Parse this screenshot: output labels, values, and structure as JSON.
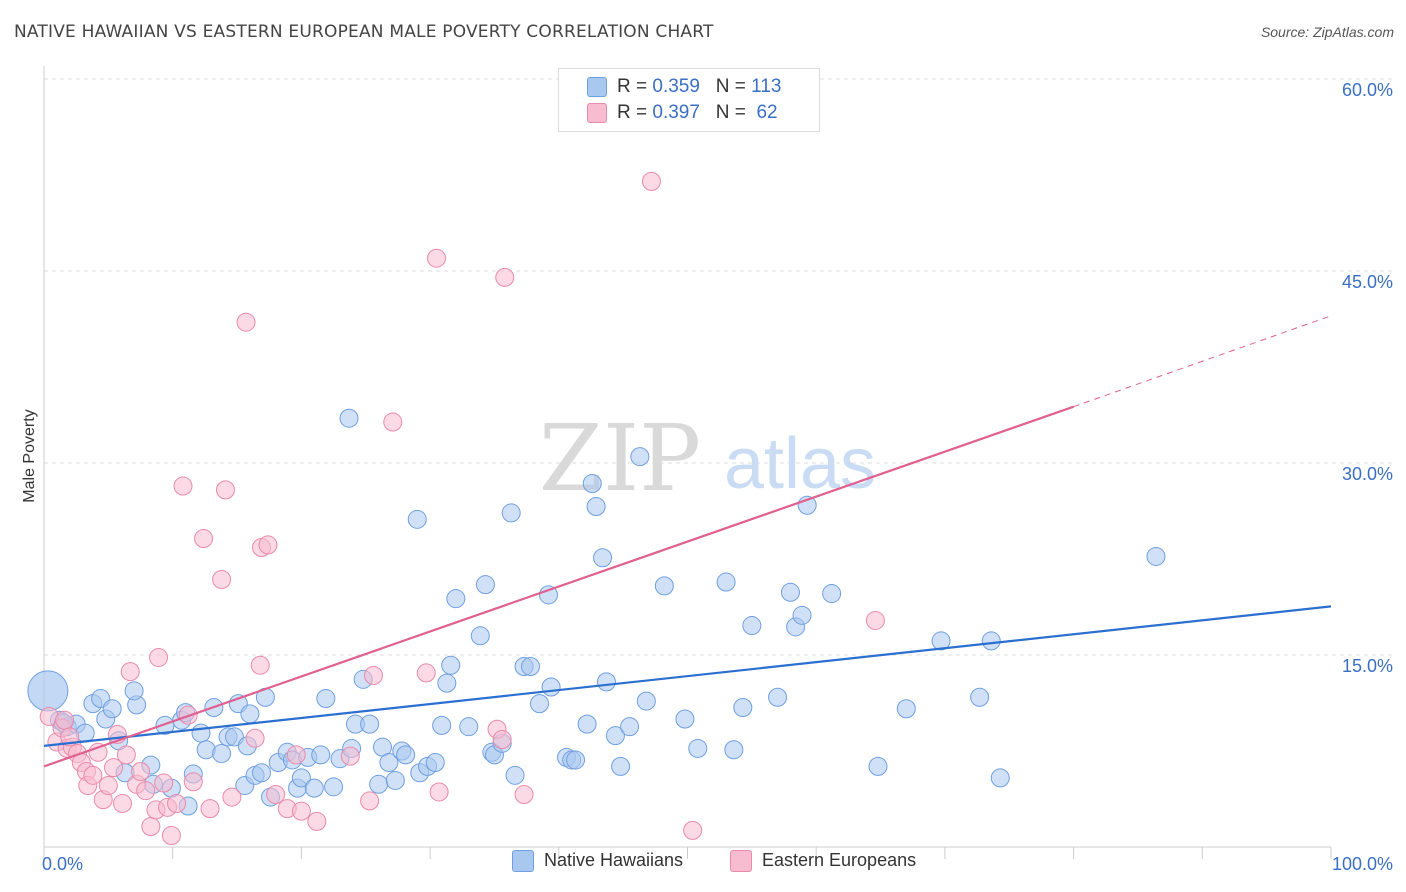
{
  "title": "NATIVE HAWAIIAN VS EASTERN EUROPEAN MALE POVERTY CORRELATION CHART",
  "source": "Source: ZipAtlas.com",
  "watermark": {
    "zip": "ZIP",
    "atlas": "atlas"
  },
  "legend": {
    "r_label": "R =",
    "n_label": "N =",
    "series": [
      {
        "r": "0.359",
        "n": "113",
        "color": "#a9c8f0",
        "border": "#6f9fe0"
      },
      {
        "r": "0.397",
        "n": "62",
        "color": "#f7bcd0",
        "border": "#e98aab"
      }
    ]
  },
  "chart_data": {
    "type": "scatter",
    "xlabel": "",
    "ylabel": "Male Poverty",
    "xlim": [
      0,
      100
    ],
    "ylim": [
      0,
      60
    ],
    "x_tick_labels": [
      "0.0%",
      "100.0%"
    ],
    "y_ticks": [
      15,
      30,
      45,
      60
    ],
    "y_tick_labels": [
      "15.0%",
      "30.0%",
      "45.0%",
      "60.0%"
    ],
    "grid": true,
    "legend_position": "bottom",
    "series": [
      {
        "name": "Native Hawaiians",
        "color": "#a9c8f0",
        "stroke": "#6f9fe0",
        "line_color": "#2b6fd1",
        "trend": {
          "x": [
            0,
            100
          ],
          "y": [
            7.9,
            18.8
          ]
        },
        "points": [
          [
            0.3,
            12.2
          ],
          [
            1.2,
            9.9
          ],
          [
            1.8,
            9.4
          ],
          [
            2.5,
            9.6
          ],
          [
            3.2,
            8.9
          ],
          [
            3.8,
            11.2
          ],
          [
            4.4,
            11.6
          ],
          [
            4.8,
            10.0
          ],
          [
            5.3,
            10.8
          ],
          [
            5.8,
            8.3
          ],
          [
            6.3,
            5.8
          ],
          [
            7.2,
            11.1
          ],
          [
            7.0,
            12.2
          ],
          [
            8.3,
            6.4
          ],
          [
            8.5,
            4.9
          ],
          [
            9.4,
            9.5
          ],
          [
            9.9,
            4.6
          ],
          [
            10.7,
            9.9
          ],
          [
            11.0,
            10.5
          ],
          [
            11.2,
            3.2
          ],
          [
            11.6,
            5.7
          ],
          [
            12.2,
            8.9
          ],
          [
            12.6,
            7.6
          ],
          [
            13.2,
            10.9
          ],
          [
            13.8,
            7.3
          ],
          [
            14.3,
            8.6
          ],
          [
            14.8,
            8.6
          ],
          [
            15.1,
            11.2
          ],
          [
            15.6,
            4.8
          ],
          [
            15.8,
            7.9
          ],
          [
            16.0,
            10.4
          ],
          [
            16.4,
            5.6
          ],
          [
            16.9,
            5.8
          ],
          [
            17.2,
            11.7
          ],
          [
            17.6,
            3.9
          ],
          [
            18.2,
            6.6
          ],
          [
            18.9,
            7.4
          ],
          [
            19.3,
            6.8
          ],
          [
            19.7,
            4.6
          ],
          [
            20.0,
            5.4
          ],
          [
            20.5,
            7.0
          ],
          [
            21.0,
            4.6
          ],
          [
            21.5,
            7.2
          ],
          [
            21.9,
            11.6
          ],
          [
            22.5,
            4.7
          ],
          [
            23.0,
            6.9
          ],
          [
            23.7,
            33.5
          ],
          [
            23.9,
            7.7
          ],
          [
            24.2,
            9.6
          ],
          [
            24.8,
            13.1
          ],
          [
            25.3,
            9.6
          ],
          [
            26.0,
            4.9
          ],
          [
            26.3,
            7.8
          ],
          [
            26.8,
            6.6
          ],
          [
            27.3,
            5.2
          ],
          [
            27.8,
            7.5
          ],
          [
            28.1,
            7.2
          ],
          [
            29.0,
            25.6
          ],
          [
            29.2,
            5.8
          ],
          [
            29.8,
            6.3
          ],
          [
            30.4,
            6.6
          ],
          [
            30.9,
            9.5
          ],
          [
            31.3,
            12.8
          ],
          [
            31.6,
            14.2
          ],
          [
            32.0,
            19.4
          ],
          [
            33.0,
            9.4
          ],
          [
            33.9,
            16.5
          ],
          [
            34.3,
            20.5
          ],
          [
            34.8,
            7.4
          ],
          [
            35.0,
            7.2
          ],
          [
            35.6,
            8.1
          ],
          [
            36.3,
            26.1
          ],
          [
            36.6,
            5.6
          ],
          [
            37.3,
            14.1
          ],
          [
            37.8,
            14.1
          ],
          [
            38.5,
            11.2
          ],
          [
            39.2,
            19.7
          ],
          [
            39.4,
            12.5
          ],
          [
            40.6,
            7.0
          ],
          [
            41.0,
            6.8
          ],
          [
            41.3,
            6.8
          ],
          [
            42.2,
            9.6
          ],
          [
            42.6,
            28.4
          ],
          [
            42.9,
            26.6
          ],
          [
            43.4,
            22.6
          ],
          [
            43.7,
            12.9
          ],
          [
            44.4,
            8.7
          ],
          [
            44.8,
            6.3
          ],
          [
            45.5,
            9.4
          ],
          [
            46.3,
            30.5
          ],
          [
            46.8,
            11.4
          ],
          [
            48.2,
            20.4
          ],
          [
            49.8,
            10.0
          ],
          [
            50.8,
            7.7
          ],
          [
            53.0,
            20.7
          ],
          [
            53.6,
            7.6
          ],
          [
            54.3,
            10.9
          ],
          [
            55.0,
            17.3
          ],
          [
            57.0,
            11.7
          ],
          [
            58.0,
            19.9
          ],
          [
            58.4,
            17.2
          ],
          [
            58.9,
            18.1
          ],
          [
            59.3,
            26.7
          ],
          [
            61.2,
            19.8
          ],
          [
            64.8,
            6.3
          ],
          [
            67.0,
            10.8
          ],
          [
            69.7,
            16.1
          ],
          [
            72.7,
            11.7
          ],
          [
            73.6,
            16.1
          ],
          [
            74.3,
            5.4
          ],
          [
            86.4,
            22.7
          ],
          [
            1.5,
            9.7
          ]
        ]
      },
      {
        "name": "Eastern Europeans",
        "color": "#f7bcd0",
        "stroke": "#e98aab",
        "line_color": "#e0608f",
        "trend": {
          "x": [
            0,
            80
          ],
          "y": [
            6.3,
            34.4
          ]
        },
        "trend_dashed": {
          "x": [
            80,
            100
          ],
          "y": [
            34.4,
            41.5
          ]
        },
        "points": [
          [
            0.4,
            10.2
          ],
          [
            1.0,
            8.2
          ],
          [
            1.4,
            9.3
          ],
          [
            1.8,
            7.7
          ],
          [
            2.2,
            7.8
          ],
          [
            2.6,
            7.3
          ],
          [
            2.9,
            6.6
          ],
          [
            3.3,
            5.9
          ],
          [
            3.4,
            4.8
          ],
          [
            3.8,
            5.6
          ],
          [
            4.2,
            7.4
          ],
          [
            4.6,
            3.7
          ],
          [
            5.0,
            4.8
          ],
          [
            5.4,
            6.2
          ],
          [
            5.7,
            8.8
          ],
          [
            6.1,
            3.4
          ],
          [
            6.4,
            7.2
          ],
          [
            6.7,
            13.7
          ],
          [
            7.2,
            4.9
          ],
          [
            7.5,
            5.9
          ],
          [
            7.9,
            4.4
          ],
          [
            8.3,
            1.6
          ],
          [
            8.7,
            2.9
          ],
          [
            8.9,
            14.8
          ],
          [
            9.3,
            5.0
          ],
          [
            9.6,
            3.1
          ],
          [
            9.9,
            0.9
          ],
          [
            10.3,
            3.4
          ],
          [
            10.8,
            28.2
          ],
          [
            11.2,
            10.3
          ],
          [
            11.6,
            5.1
          ],
          [
            12.4,
            24.1
          ],
          [
            12.9,
            3.0
          ],
          [
            13.8,
            20.9
          ],
          [
            14.1,
            27.9
          ],
          [
            14.6,
            3.9
          ],
          [
            15.7,
            41.0
          ],
          [
            16.4,
            8.5
          ],
          [
            16.8,
            14.2
          ],
          [
            16.9,
            23.4
          ],
          [
            17.4,
            23.6
          ],
          [
            18.0,
            4.1
          ],
          [
            18.9,
            3.0
          ],
          [
            19.6,
            7.2
          ],
          [
            20.0,
            2.8
          ],
          [
            21.2,
            2.0
          ],
          [
            23.8,
            7.1
          ],
          [
            25.3,
            3.6
          ],
          [
            25.6,
            13.4
          ],
          [
            27.1,
            33.2
          ],
          [
            29.7,
            13.6
          ],
          [
            30.5,
            46.0
          ],
          [
            30.7,
            4.3
          ],
          [
            35.2,
            9.2
          ],
          [
            35.6,
            8.4
          ],
          [
            35.8,
            44.5
          ],
          [
            37.3,
            4.1
          ],
          [
            47.2,
            52.0
          ],
          [
            50.4,
            1.3
          ],
          [
            64.6,
            17.7
          ],
          [
            1.6,
            9.9
          ],
          [
            2.0,
            8.6
          ]
        ]
      }
    ]
  },
  "bottom_legend": [
    "Native Hawaiians",
    "Eastern Europeans"
  ]
}
